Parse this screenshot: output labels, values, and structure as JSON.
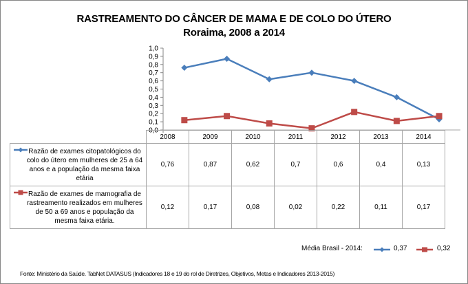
{
  "chart_data": {
    "type": "line",
    "title": "RASTREAMENTO DO CÂNCER DE MAMA E DE COLO DO ÚTERO",
    "subtitle": "Roraima, 2008 a 2014",
    "xlabel": "",
    "ylabel": "",
    "ylim": [
      0,
      1.0
    ],
    "yticks": [
      "0,0",
      "0,1",
      "0,2",
      "0,3",
      "0,4",
      "0,5",
      "0,6",
      "0,7",
      "0,8",
      "0,9",
      "1,0"
    ],
    "grid": false,
    "categories": [
      "2008",
      "2009",
      "2010",
      "2011",
      "2012",
      "2013",
      "2014"
    ],
    "series": [
      {
        "name": "Razão de exames citopatológicos do colo do útero em mulheres de 25 a 64 anos e a população da mesma faixa etária",
        "color": "#4a7ebb",
        "marker": "diamond",
        "values": [
          0.76,
          0.87,
          0.62,
          0.7,
          0.6,
          0.4,
          0.13
        ],
        "labels": [
          "0,76",
          "0,87",
          "0,62",
          "0,7",
          "0,6",
          "0,4",
          "0,13"
        ]
      },
      {
        "name": "Razão de exames de mamografia de rastreamento realizados em mulheres de 50 a 69 anos e população da mesma faixa etária.",
        "color": "#be4b48",
        "marker": "square",
        "values": [
          0.12,
          0.17,
          0.08,
          0.02,
          0.22,
          0.11,
          0.17
        ],
        "labels": [
          "0,12",
          "0,17",
          "0,08",
          "0,02",
          "0,22",
          "0,11",
          "0,17"
        ]
      }
    ],
    "data_table": true,
    "legend": "in-data-table"
  },
  "media_brasil": {
    "label": "Média Brasil - 2014:",
    "values": [
      "0,37",
      "0,32"
    ]
  },
  "source": "Fonte: Ministério da Saúde. TabNet DATASUS (Indicadores 18 e 19 do rol de Diretrizes, Objetivos, Metas e Indicadores 2013-2015)"
}
